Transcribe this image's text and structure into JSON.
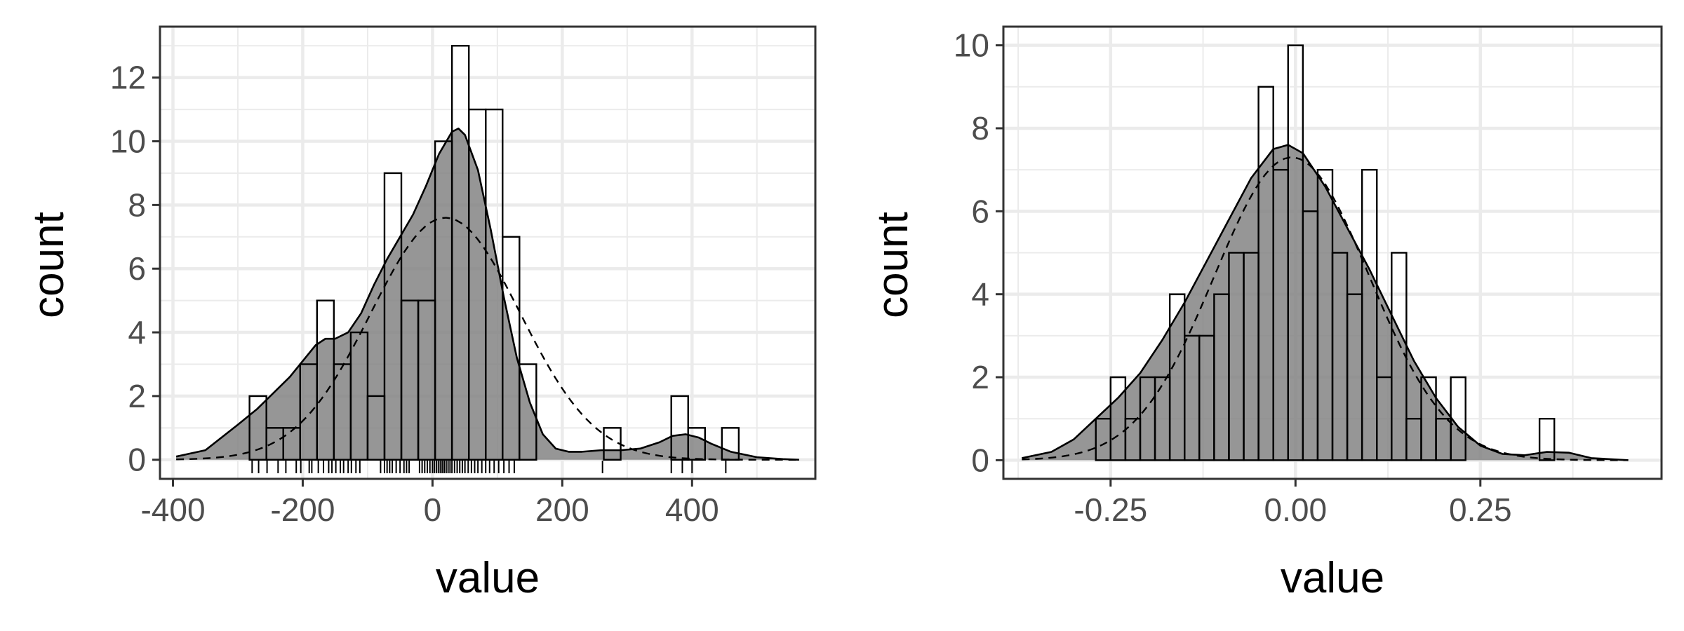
{
  "chart_data": [
    {
      "type": "bar",
      "subtype": "histogram-with-density",
      "xlabel": "value",
      "ylabel": "count",
      "xlim": [
        -420,
        590
      ],
      "ylim": [
        -0.6,
        13.6
      ],
      "xticks": [
        -400,
        -200,
        0,
        200,
        400
      ],
      "xtick_labels": [
        "-400",
        "-200",
        "0",
        "200",
        "400"
      ],
      "yticks": [
        0,
        2,
        4,
        6,
        8,
        10,
        12
      ],
      "ytick_labels": [
        "0",
        "2",
        "4",
        "6",
        "8",
        "10",
        "12"
      ],
      "grid": true,
      "bins": [
        {
          "x0": -282,
          "x1": -256,
          "count": 2
        },
        {
          "x0": -256,
          "x1": -230,
          "count": 1
        },
        {
          "x0": -230,
          "x1": -204,
          "count": 1
        },
        {
          "x0": -204,
          "x1": -178,
          "count": 3
        },
        {
          "x0": -178,
          "x1": -152,
          "count": 5
        },
        {
          "x0": -152,
          "x1": -126,
          "count": 3
        },
        {
          "x0": -126,
          "x1": -100,
          "count": 4
        },
        {
          "x0": -100,
          "x1": -74,
          "count": 2
        },
        {
          "x0": -74,
          "x1": -48,
          "count": 9
        },
        {
          "x0": -48,
          "x1": -22,
          "count": 5
        },
        {
          "x0": -22,
          "x1": 4,
          "count": 5
        },
        {
          "x0": 4,
          "x1": 30,
          "count": 10
        },
        {
          "x0": 30,
          "x1": 56,
          "count": 13
        },
        {
          "x0": 56,
          "x1": 82,
          "count": 11
        },
        {
          "x0": 82,
          "x1": 108,
          "count": 11
        },
        {
          "x0": 108,
          "x1": 134,
          "count": 7
        },
        {
          "x0": 134,
          "x1": 160,
          "count": 3
        },
        {
          "x0": 264,
          "x1": 290,
          "count": 1
        },
        {
          "x0": 368,
          "x1": 394,
          "count": 2
        },
        {
          "x0": 394,
          "x1": 420,
          "count": 1
        },
        {
          "x0": 446,
          "x1": 472,
          "count": 1
        }
      ],
      "density_curve": {
        "x": [
          -395,
          -350,
          -300,
          -270,
          -250,
          -220,
          -200,
          -180,
          -165,
          -150,
          -130,
          -110,
          -90,
          -70,
          -50,
          -30,
          -10,
          10,
          30,
          40,
          50,
          70,
          90,
          110,
          130,
          150,
          170,
          190,
          210,
          230,
          260,
          290,
          320,
          350,
          370,
          390,
          410,
          430,
          460,
          500,
          540,
          565
        ],
        "y": [
          0.1,
          0.3,
          1.1,
          1.6,
          2.0,
          2.6,
          3.1,
          3.6,
          3.8,
          3.8,
          4.0,
          4.6,
          5.5,
          6.3,
          7.0,
          7.7,
          8.6,
          9.6,
          10.3,
          10.4,
          10.2,
          9.1,
          7.2,
          5.1,
          3.2,
          1.8,
          0.8,
          0.35,
          0.25,
          0.25,
          0.3,
          0.3,
          0.35,
          0.55,
          0.75,
          0.8,
          0.7,
          0.5,
          0.25,
          0.08,
          0.02,
          0.0
        ]
      },
      "normal_curve": {
        "mean": 20,
        "sd": 115,
        "peak": 7.6,
        "x_from": -395,
        "x_to": 565
      },
      "rug": [
        -278,
        -268,
        -255,
        -238,
        -226,
        -210,
        -203,
        -190,
        -186,
        -176,
        -168,
        -160,
        -155,
        -149,
        -142,
        -137,
        -130,
        -125,
        -118,
        -112,
        -80,
        -74,
        -70,
        -66,
        -62,
        -56,
        -50,
        -44,
        -40,
        -36,
        -20,
        -16,
        -12,
        -8,
        -4,
        0,
        3,
        6,
        9,
        12,
        15,
        18,
        21,
        24,
        27,
        30,
        34,
        38,
        42,
        46,
        50,
        55,
        60,
        65,
        70,
        76,
        82,
        88,
        95,
        102,
        110,
        118,
        126,
        262,
        368,
        385,
        400,
        452
      ]
    },
    {
      "type": "bar",
      "subtype": "histogram-with-density",
      "xlabel": "value",
      "ylabel": "count",
      "xlim": [
        -0.395,
        0.495
      ],
      "ylim": [
        -0.45,
        10.45
      ],
      "xticks": [
        -0.25,
        0.0,
        0.25
      ],
      "xtick_labels": [
        "-0.25",
        "0.00",
        "0.25"
      ],
      "yticks": [
        0,
        2,
        4,
        6,
        8,
        10
      ],
      "ytick_labels": [
        "0",
        "2",
        "4",
        "6",
        "8",
        "10"
      ],
      "grid": true,
      "bins": [
        {
          "x0": -0.27,
          "x1": -0.25,
          "count": 1
        },
        {
          "x0": -0.25,
          "x1": -0.23,
          "count": 2
        },
        {
          "x0": -0.23,
          "x1": -0.21,
          "count": 1
        },
        {
          "x0": -0.21,
          "x1": -0.19,
          "count": 2
        },
        {
          "x0": -0.19,
          "x1": -0.17,
          "count": 2
        },
        {
          "x0": -0.17,
          "x1": -0.15,
          "count": 4
        },
        {
          "x0": -0.15,
          "x1": -0.13,
          "count": 3
        },
        {
          "x0": -0.13,
          "x1": -0.11,
          "count": 3
        },
        {
          "x0": -0.11,
          "x1": -0.09,
          "count": 4
        },
        {
          "x0": -0.09,
          "x1": -0.07,
          "count": 5
        },
        {
          "x0": -0.07,
          "x1": -0.05,
          "count": 5
        },
        {
          "x0": -0.05,
          "x1": -0.03,
          "count": 9
        },
        {
          "x0": -0.03,
          "x1": -0.01,
          "count": 7
        },
        {
          "x0": -0.01,
          "x1": 0.01,
          "count": 10
        },
        {
          "x0": 0.01,
          "x1": 0.03,
          "count": 6
        },
        {
          "x0": 0.03,
          "x1": 0.05,
          "count": 7
        },
        {
          "x0": 0.05,
          "x1": 0.07,
          "count": 5
        },
        {
          "x0": 0.07,
          "x1": 0.09,
          "count": 4
        },
        {
          "x0": 0.09,
          "x1": 0.11,
          "count": 7
        },
        {
          "x0": 0.11,
          "x1": 0.13,
          "count": 2
        },
        {
          "x0": 0.13,
          "x1": 0.15,
          "count": 5
        },
        {
          "x0": 0.15,
          "x1": 0.17,
          "count": 1
        },
        {
          "x0": 0.17,
          "x1": 0.19,
          "count": 2
        },
        {
          "x0": 0.19,
          "x1": 0.21,
          "count": 1
        },
        {
          "x0": 0.21,
          "x1": 0.23,
          "count": 2
        },
        {
          "x0": 0.33,
          "x1": 0.35,
          "count": 1
        }
      ],
      "density_curve": {
        "x": [
          -0.37,
          -0.33,
          -0.3,
          -0.27,
          -0.24,
          -0.21,
          -0.18,
          -0.15,
          -0.12,
          -0.09,
          -0.06,
          -0.03,
          -0.01,
          0.01,
          0.04,
          0.07,
          0.1,
          0.13,
          0.16,
          0.19,
          0.22,
          0.25,
          0.28,
          0.31,
          0.34,
          0.37,
          0.4,
          0.45
        ],
        "y": [
          0.05,
          0.2,
          0.5,
          1.0,
          1.5,
          2.1,
          2.9,
          3.8,
          4.8,
          5.8,
          6.8,
          7.5,
          7.6,
          7.4,
          6.6,
          5.6,
          4.6,
          3.5,
          2.4,
          1.5,
          0.8,
          0.35,
          0.15,
          0.12,
          0.2,
          0.18,
          0.05,
          0.0
        ]
      },
      "normal_curve": {
        "mean": -0.005,
        "sd": 0.105,
        "peak": 7.3,
        "x_from": -0.37,
        "x_to": 0.45
      }
    }
  ]
}
